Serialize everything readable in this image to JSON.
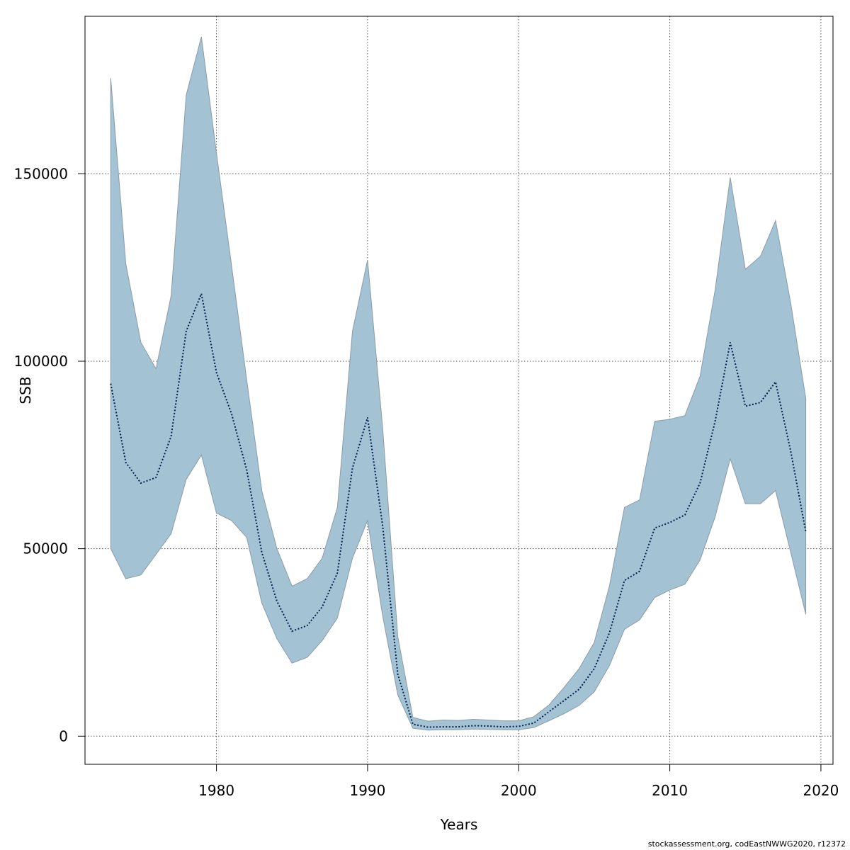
{
  "chart_data": {
    "type": "area",
    "xlabel": "Years",
    "ylabel": "SSB",
    "xlim": [
      1971.3,
      2020.8
    ],
    "ylim": [
      -7500,
      192000
    ],
    "x_ticks": [
      1980,
      1990,
      2000,
      2010,
      2020
    ],
    "y_ticks": [
      0,
      50000,
      100000,
      150000
    ],
    "grid": true,
    "x": [
      1973,
      1974,
      1975,
      1976,
      1977,
      1978,
      1979,
      1980,
      1981,
      1982,
      1983,
      1984,
      1985,
      1986,
      1987,
      1988,
      1989,
      1990,
      1991,
      1992,
      1993,
      1994,
      1995,
      1996,
      1997,
      1998,
      1999,
      2000,
      2001,
      2002,
      2003,
      2004,
      2005,
      2006,
      2007,
      2008,
      2009,
      2010,
      2011,
      2012,
      2013,
      2014,
      2015,
      2016,
      2017,
      2018,
      2019
    ],
    "series": [
      {
        "estimate": [
          94000,
          73000,
          67500,
          69000,
          80000,
          108000,
          118000,
          97000,
          86000,
          71000,
          49000,
          36000,
          28000,
          29500,
          34500,
          43500,
          71500,
          85000,
          56000,
          16500,
          3200,
          2400,
          2500,
          2500,
          2800,
          2700,
          2500,
          2600,
          3500,
          6500,
          9500,
          12500,
          18000,
          27500,
          41500,
          44000,
          55500,
          57000,
          59000,
          67500,
          84000,
          105000,
          88000,
          89000,
          94500,
          76000,
          54500
        ],
        "lower": [
          50000,
          42000,
          43000,
          48500,
          54000,
          68500,
          75000,
          59500,
          57500,
          53000,
          35500,
          26000,
          19500,
          21000,
          25500,
          31500,
          47500,
          57500,
          32000,
          11000,
          2100,
          1600,
          1700,
          1700,
          1900,
          1800,
          1700,
          1700,
          2300,
          4100,
          6000,
          8200,
          11800,
          18800,
          28500,
          31000,
          37000,
          39000,
          40500,
          47000,
          58500,
          74000,
          62000,
          62000,
          65500,
          49000,
          32500
        ],
        "upper": [
          175500,
          126000,
          105000,
          98000,
          117500,
          171000,
          186500,
          155500,
          125500,
          95000,
          65500,
          50000,
          40000,
          42000,
          47500,
          61000,
          108000,
          127000,
          82000,
          26500,
          5000,
          4000,
          4300,
          4200,
          4500,
          4300,
          4100,
          4100,
          5200,
          8300,
          13000,
          18000,
          25000,
          40000,
          61000,
          63000,
          84000,
          84500,
          85500,
          96000,
          119000,
          149000,
          124500,
          128000,
          137500,
          115500,
          90000
        ]
      }
    ],
    "colors": {
      "band": "#a3c3d4",
      "band_edge": "#8a9ba6",
      "line": "#00204d"
    }
  },
  "footer": "stockassessment.org, codEastNWWG2020, r12372"
}
